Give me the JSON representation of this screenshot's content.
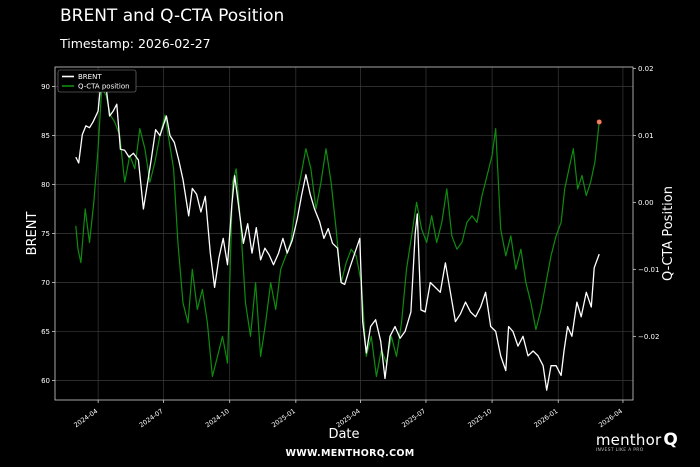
{
  "header": {
    "title": "BRENT and Q-CTA Position",
    "subtitle": "Timestamp: 2026-02-27"
  },
  "footer": {
    "website": "WWW.MENTHORQ.COM",
    "brand_name": "menthor",
    "brand_mark": "Q",
    "brand_tagline": "INVEST LIKE A PRO"
  },
  "colors": {
    "background": "#000000",
    "brent_line": "#ffffff",
    "cta_line": "#0f8c0f",
    "marker": "#e8866a",
    "grid": "#3a3a3a",
    "axis": "#d0d0d0"
  },
  "chart_data": {
    "type": "line",
    "title": "BRENT and Q-CTA Position",
    "subtitle": "Timestamp: 2026-02-27",
    "xlabel": "Date",
    "ylabel_left": "BRENT",
    "ylabel_right": "Q-CTA Position",
    "x_ticks": [
      "2024-04",
      "2024-07",
      "2024-10",
      "2025-01",
      "2025-04",
      "2025-07",
      "2025-10",
      "2026-01",
      "2026-04"
    ],
    "y_left_ticks": [
      60,
      65,
      70,
      75,
      80,
      85,
      90
    ],
    "y_left_lim": [
      58,
      92
    ],
    "y_right_ticks": [
      -0.02,
      -0.01,
      0.0,
      0.01,
      0.02
    ],
    "y_right_tick_labels": [
      "−0.02",
      "−0.01",
      "0.00",
      "0.01",
      "0.02"
    ],
    "y_right_lim": [
      -0.0295,
      0.0202
    ],
    "x_range": [
      "2024-02-01",
      "2026-04-15"
    ],
    "grid": true,
    "legend_position": "top-left",
    "series": [
      {
        "name": "BRENT",
        "axis": "left",
        "color": "#ffffff",
        "points": [
          [
            "2024-03-01",
            82.8
          ],
          [
            "2024-03-05",
            82.2
          ],
          [
            "2024-03-10",
            85.1
          ],
          [
            "2024-03-15",
            86.0
          ],
          [
            "2024-03-20",
            85.8
          ],
          [
            "2024-03-25",
            86.4
          ],
          [
            "2024-04-01",
            87.5
          ],
          [
            "2024-04-05",
            90.5
          ],
          [
            "2024-04-08",
            91.2
          ],
          [
            "2024-04-12",
            90.0
          ],
          [
            "2024-04-17",
            87.0
          ],
          [
            "2024-04-22",
            87.5
          ],
          [
            "2024-04-27",
            88.2
          ],
          [
            "2024-05-02",
            83.6
          ],
          [
            "2024-05-08",
            83.5
          ],
          [
            "2024-05-14",
            82.8
          ],
          [
            "2024-05-20",
            83.2
          ],
          [
            "2024-05-27",
            82.5
          ],
          [
            "2024-06-03",
            77.5
          ],
          [
            "2024-06-08",
            79.8
          ],
          [
            "2024-06-14",
            82.6
          ],
          [
            "2024-06-20",
            85.6
          ],
          [
            "2024-06-26",
            85.0
          ],
          [
            "2024-07-05",
            87.0
          ],
          [
            "2024-07-10",
            85.0
          ],
          [
            "2024-07-16",
            84.3
          ],
          [
            "2024-07-22",
            82.5
          ],
          [
            "2024-07-28",
            80.5
          ],
          [
            "2024-08-05",
            76.8
          ],
          [
            "2024-08-10",
            79.6
          ],
          [
            "2024-08-16",
            79.0
          ],
          [
            "2024-08-22",
            77.2
          ],
          [
            "2024-08-28",
            78.8
          ],
          [
            "2024-09-04",
            73.0
          ],
          [
            "2024-09-10",
            69.5
          ],
          [
            "2024-09-16",
            72.5
          ],
          [
            "2024-09-22",
            74.5
          ],
          [
            "2024-09-28",
            71.8
          ],
          [
            "2024-10-04",
            78.0
          ],
          [
            "2024-10-08",
            80.9
          ],
          [
            "2024-10-14",
            77.5
          ],
          [
            "2024-10-20",
            74.0
          ],
          [
            "2024-10-26",
            76.0
          ],
          [
            "2024-11-01",
            73.0
          ],
          [
            "2024-11-07",
            75.6
          ],
          [
            "2024-11-13",
            72.3
          ],
          [
            "2024-11-19",
            73.5
          ],
          [
            "2024-11-25",
            72.8
          ],
          [
            "2024-12-01",
            71.8
          ],
          [
            "2024-12-08",
            73.0
          ],
          [
            "2024-12-14",
            74.5
          ],
          [
            "2024-12-20",
            73.0
          ],
          [
            "2024-12-27",
            74.3
          ],
          [
            "2025-01-03",
            76.5
          ],
          [
            "2025-01-09",
            78.9
          ],
          [
            "2025-01-15",
            81.0
          ],
          [
            "2025-01-21",
            79.0
          ],
          [
            "2025-01-27",
            77.5
          ],
          [
            "2025-02-03",
            76.2
          ],
          [
            "2025-02-09",
            74.5
          ],
          [
            "2025-02-15",
            75.5
          ],
          [
            "2025-02-21",
            74.0
          ],
          [
            "2025-02-28",
            73.5
          ],
          [
            "2025-03-05",
            70.0
          ],
          [
            "2025-03-10",
            69.8
          ],
          [
            "2025-03-17",
            71.5
          ],
          [
            "2025-03-24",
            73.0
          ],
          [
            "2025-03-31",
            74.5
          ],
          [
            "2025-04-04",
            66.0
          ],
          [
            "2025-04-09",
            62.8
          ],
          [
            "2025-04-15",
            65.5
          ],
          [
            "2025-04-22",
            66.2
          ],
          [
            "2025-04-29",
            64.0
          ],
          [
            "2025-05-05",
            60.2
          ],
          [
            "2025-05-12",
            64.5
          ],
          [
            "2025-05-19",
            65.5
          ],
          [
            "2025-05-26",
            64.3
          ],
          [
            "2025-06-02",
            65.0
          ],
          [
            "2025-06-10",
            67.0
          ],
          [
            "2025-06-16",
            75.0
          ],
          [
            "2025-06-19",
            77.0
          ],
          [
            "2025-06-24",
            67.2
          ],
          [
            "2025-06-30",
            67.0
          ],
          [
            "2025-07-07",
            70.0
          ],
          [
            "2025-07-14",
            69.5
          ],
          [
            "2025-07-21",
            69.0
          ],
          [
            "2025-07-28",
            72.0
          ],
          [
            "2025-08-04",
            69.0
          ],
          [
            "2025-08-11",
            66.0
          ],
          [
            "2025-08-18",
            66.8
          ],
          [
            "2025-08-25",
            68.0
          ],
          [
            "2025-09-01",
            67.0
          ],
          [
            "2025-09-08",
            66.5
          ],
          [
            "2025-09-15",
            67.5
          ],
          [
            "2025-09-22",
            69.0
          ],
          [
            "2025-09-29",
            65.5
          ],
          [
            "2025-10-06",
            65.0
          ],
          [
            "2025-10-13",
            62.5
          ],
          [
            "2025-10-20",
            61.0
          ],
          [
            "2025-10-24",
            65.5
          ],
          [
            "2025-10-30",
            65.0
          ],
          [
            "2025-11-06",
            63.5
          ],
          [
            "2025-11-13",
            64.5
          ],
          [
            "2025-11-20",
            62.5
          ],
          [
            "2025-11-27",
            63.0
          ],
          [
            "2025-12-04",
            62.5
          ],
          [
            "2025-12-11",
            61.5
          ],
          [
            "2025-12-16",
            59.0
          ],
          [
            "2025-12-22",
            61.5
          ],
          [
            "2025-12-29",
            61.5
          ],
          [
            "2026-01-05",
            60.5
          ],
          [
            "2026-01-09",
            63.0
          ],
          [
            "2026-01-14",
            65.5
          ],
          [
            "2026-01-20",
            64.5
          ],
          [
            "2026-01-27",
            68.0
          ],
          [
            "2026-02-02",
            66.5
          ],
          [
            "2026-02-09",
            69.0
          ],
          [
            "2026-02-16",
            67.5
          ],
          [
            "2026-02-20",
            71.5
          ],
          [
            "2026-02-27",
            72.9
          ]
        ]
      },
      {
        "name": "Q-CTA position",
        "axis": "right",
        "color": "#0f8c0f",
        "points": [
          [
            "2024-03-01",
            -0.0035
          ],
          [
            "2024-03-04",
            -0.007
          ],
          [
            "2024-03-08",
            -0.009
          ],
          [
            "2024-03-14",
            -0.001
          ],
          [
            "2024-03-20",
            -0.006
          ],
          [
            "2024-03-26",
            0.0
          ],
          [
            "2024-04-01",
            0.008
          ],
          [
            "2024-04-06",
            0.017
          ],
          [
            "2024-04-12",
            0.016
          ],
          [
            "2024-04-18",
            0.013
          ],
          [
            "2024-04-24",
            0.012
          ],
          [
            "2024-05-01",
            0.01
          ],
          [
            "2024-05-08",
            0.003
          ],
          [
            "2024-05-15",
            0.007
          ],
          [
            "2024-05-22",
            0.005
          ],
          [
            "2024-05-29",
            0.011
          ],
          [
            "2024-06-05",
            0.008
          ],
          [
            "2024-06-12",
            0.003
          ],
          [
            "2024-06-19",
            0.006
          ],
          [
            "2024-06-26",
            0.01
          ],
          [
            "2024-07-03",
            0.013
          ],
          [
            "2024-07-09",
            0.009
          ],
          [
            "2024-07-15",
            0.005
          ],
          [
            "2024-07-21",
            -0.006
          ],
          [
            "2024-07-28",
            -0.015
          ],
          [
            "2024-08-04",
            -0.018
          ],
          [
            "2024-08-10",
            -0.01
          ],
          [
            "2024-08-17",
            -0.016
          ],
          [
            "2024-08-24",
            -0.013
          ],
          [
            "2024-08-31",
            -0.018
          ],
          [
            "2024-09-07",
            -0.026
          ],
          [
            "2024-09-14",
            -0.023
          ],
          [
            "2024-09-21",
            -0.02
          ],
          [
            "2024-09-28",
            -0.024
          ],
          [
            "2024-10-05",
            0.003
          ],
          [
            "2024-10-10",
            0.005
          ],
          [
            "2024-10-16",
            -0.003
          ],
          [
            "2024-10-23",
            -0.015
          ],
          [
            "2024-10-30",
            -0.02
          ],
          [
            "2024-11-06",
            -0.012
          ],
          [
            "2024-11-13",
            -0.023
          ],
          [
            "2024-11-20",
            -0.018
          ],
          [
            "2024-11-27",
            -0.012
          ],
          [
            "2024-12-04",
            -0.016
          ],
          [
            "2024-12-11",
            -0.01
          ],
          [
            "2024-12-18",
            -0.008
          ],
          [
            "2024-12-25",
            -0.006
          ],
          [
            "2025-01-01",
            0.0
          ],
          [
            "2025-01-08",
            0.004
          ],
          [
            "2025-01-15",
            0.008
          ],
          [
            "2025-01-22",
            0.005
          ],
          [
            "2025-01-29",
            -0.001
          ],
          [
            "2025-02-05",
            0.003
          ],
          [
            "2025-02-12",
            0.008
          ],
          [
            "2025-02-19",
            0.003
          ],
          [
            "2025-02-26",
            -0.004
          ],
          [
            "2025-03-05",
            -0.012
          ],
          [
            "2025-03-12",
            -0.009
          ],
          [
            "2025-03-19",
            -0.007
          ],
          [
            "2025-03-26",
            -0.008
          ],
          [
            "2025-04-02",
            -0.012
          ],
          [
            "2025-04-09",
            -0.023
          ],
          [
            "2025-04-16",
            -0.02
          ],
          [
            "2025-04-23",
            -0.026
          ],
          [
            "2025-04-30",
            -0.022
          ],
          [
            "2025-05-07",
            -0.024
          ],
          [
            "2025-05-14",
            -0.02
          ],
          [
            "2025-05-21",
            -0.023
          ],
          [
            "2025-05-28",
            -0.018
          ],
          [
            "2025-06-04",
            -0.01
          ],
          [
            "2025-06-11",
            -0.005
          ],
          [
            "2025-06-18",
            0.0
          ],
          [
            "2025-06-25",
            -0.004
          ],
          [
            "2025-07-02",
            -0.006
          ],
          [
            "2025-07-09",
            -0.002
          ],
          [
            "2025-07-16",
            -0.006
          ],
          [
            "2025-07-23",
            -0.003
          ],
          [
            "2025-07-30",
            0.002
          ],
          [
            "2025-08-06",
            -0.005
          ],
          [
            "2025-08-13",
            -0.007
          ],
          [
            "2025-08-20",
            -0.006
          ],
          [
            "2025-08-27",
            -0.003
          ],
          [
            "2025-09-03",
            -0.002
          ],
          [
            "2025-09-10",
            -0.003
          ],
          [
            "2025-09-17",
            0.001
          ],
          [
            "2025-09-24",
            0.004
          ],
          [
            "2025-10-01",
            0.007
          ],
          [
            "2025-10-06",
            0.011
          ],
          [
            "2025-10-13",
            -0.004
          ],
          [
            "2025-10-20",
            -0.008
          ],
          [
            "2025-10-27",
            -0.005
          ],
          [
            "2025-11-03",
            -0.01
          ],
          [
            "2025-11-10",
            -0.007
          ],
          [
            "2025-11-17",
            -0.012
          ],
          [
            "2025-11-24",
            -0.015
          ],
          [
            "2025-12-01",
            -0.019
          ],
          [
            "2025-12-08",
            -0.016
          ],
          [
            "2025-12-15",
            -0.012
          ],
          [
            "2025-12-22",
            -0.008
          ],
          [
            "2025-12-29",
            -0.005
          ],
          [
            "2026-01-05",
            -0.003
          ],
          [
            "2026-01-10",
            0.002
          ],
          [
            "2026-01-16",
            0.005
          ],
          [
            "2026-01-22",
            0.008
          ],
          [
            "2026-01-28",
            0.002
          ],
          [
            "2026-02-03",
            0.004
          ],
          [
            "2026-02-09",
            0.001
          ],
          [
            "2026-02-15",
            0.003
          ],
          [
            "2026-02-21",
            0.006
          ],
          [
            "2026-02-27",
            0.012
          ]
        ]
      }
    ],
    "last_marker": {
      "date": "2026-02-27",
      "value": 0.012,
      "axis": "right"
    }
  }
}
